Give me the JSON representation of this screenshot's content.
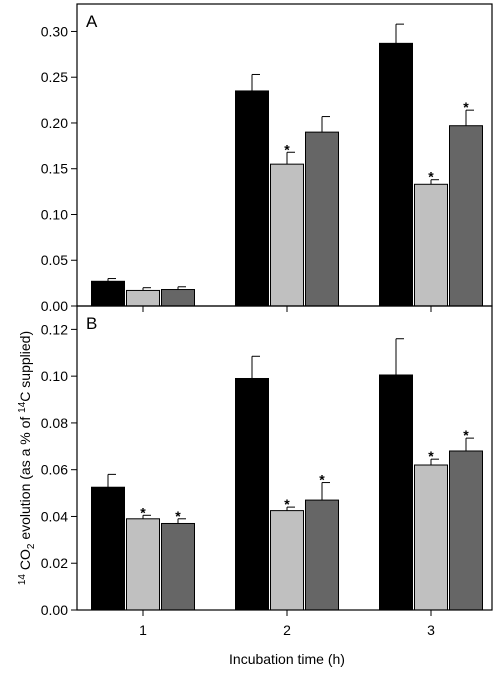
{
  "chart_data": [
    {
      "type": "bar",
      "panel_label": "A",
      "categories": [
        "1",
        "2",
        "3"
      ],
      "series": [
        {
          "color": "#000000",
          "values": [
            0.027,
            0.235,
            0.287
          ],
          "errors": [
            0.003,
            0.018,
            0.021
          ],
          "significant": [
            false,
            false,
            false
          ]
        },
        {
          "color": "#c0c0c0",
          "values": [
            0.017,
            0.155,
            0.133
          ],
          "errors": [
            0.003,
            0.013,
            0.005
          ],
          "significant": [
            false,
            true,
            true
          ]
        },
        {
          "color": "#666666",
          "values": [
            0.018,
            0.19,
            0.197
          ],
          "errors": [
            0.003,
            0.017,
            0.017
          ],
          "significant": [
            false,
            false,
            true
          ]
        }
      ],
      "ylim": [
        0,
        0.33
      ],
      "yticks": [
        0.0,
        0.05,
        0.1,
        0.15,
        0.2,
        0.25,
        0.3
      ],
      "ytick_labels": [
        "0.00",
        "0.05",
        "0.10",
        "0.15",
        "0.20",
        "0.25",
        "0.30"
      ],
      "significance_marker": "*"
    },
    {
      "type": "bar",
      "panel_label": "B",
      "categories": [
        "1",
        "2",
        "3"
      ],
      "series": [
        {
          "color": "#000000",
          "values": [
            0.0525,
            0.099,
            0.1005
          ],
          "errors": [
            0.0055,
            0.0095,
            0.0155
          ],
          "significant": [
            false,
            false,
            false
          ]
        },
        {
          "color": "#c0c0c0",
          "values": [
            0.039,
            0.0425,
            0.062
          ],
          "errors": [
            0.0015,
            0.0015,
            0.0025
          ],
          "significant": [
            true,
            true,
            true
          ]
        },
        {
          "color": "#666666",
          "values": [
            0.037,
            0.047,
            0.068
          ],
          "errors": [
            0.002,
            0.0075,
            0.0055
          ],
          "significant": [
            true,
            true,
            true
          ]
        }
      ],
      "ylim": [
        0,
        0.13
      ],
      "yticks": [
        0.0,
        0.02,
        0.04,
        0.06,
        0.08,
        0.1,
        0.12
      ],
      "ytick_labels": [
        "0.00",
        "0.02",
        "0.04",
        "0.06",
        "0.08",
        "0.10",
        "0.12"
      ],
      "significance_marker": "*"
    }
  ],
  "axes": {
    "xlabel": "Incubation time (h)",
    "ylabel": {
      "pre": "14",
      "mid1": " CO",
      "sub": "2",
      "mid2": " evolution (as a % of ",
      "sup": "14",
      "post": "C supplied)"
    }
  }
}
